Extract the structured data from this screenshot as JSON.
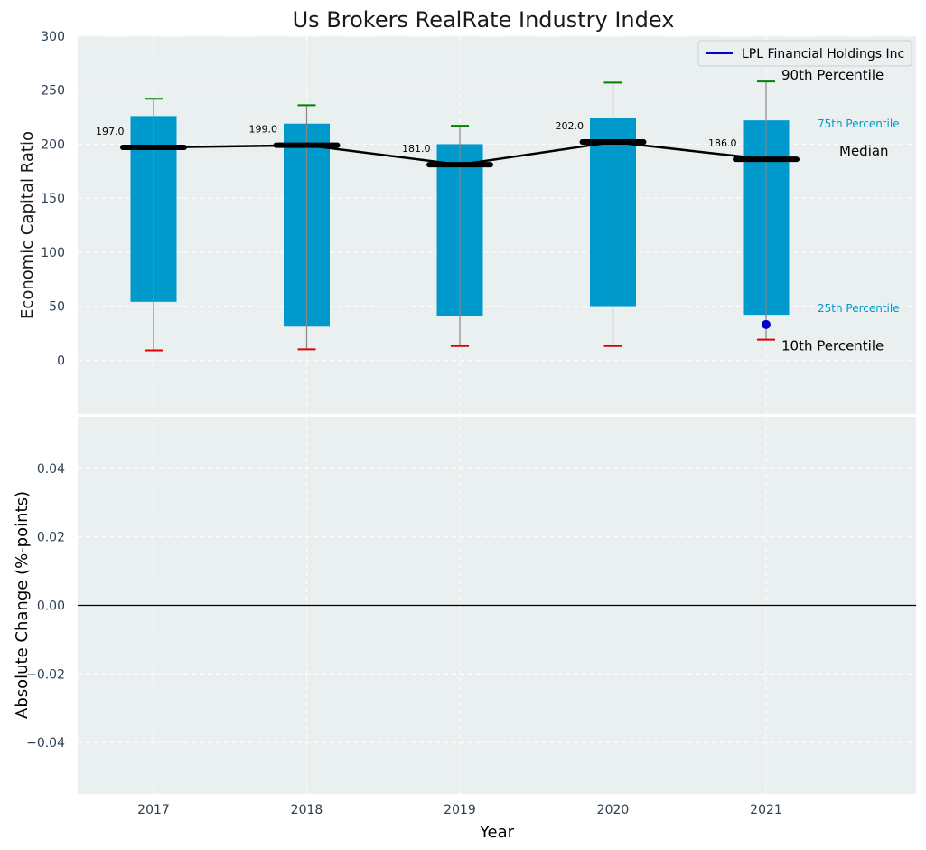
{
  "colors": {
    "panel_bg": "#eaeff0",
    "grid": "#ffffff",
    "bar": "#0099cc",
    "whisker_line": "#888888",
    "p90_cap": "#008000",
    "p10_cap": "#dd0000",
    "median": "#000000",
    "company": "#0000cc",
    "tick_text": "#2d3e50",
    "label_text": "#1a1a1a",
    "annot_blue": "#0099cc"
  },
  "chart_data": [
    {
      "type": "box",
      "title": "Us Brokers RealRate Industry Index",
      "xlabel": "",
      "ylabel": "Economic Capital Ratio",
      "ylim": [
        -50,
        300
      ],
      "yticks": [
        0,
        50,
        100,
        150,
        200,
        250,
        300
      ],
      "categories": [
        "2017",
        "2018",
        "2019",
        "2020",
        "2021"
      ],
      "grid": true,
      "legend_position": "top-right",
      "series": [
        {
          "name": "",
          "p10": [
            9,
            10,
            13,
            13,
            19
          ],
          "p25": [
            54,
            31,
            41,
            50,
            42
          ],
          "median": [
            197.0,
            199.0,
            181.0,
            202.0,
            186.0
          ],
          "p75": [
            226,
            219,
            200,
            224,
            222
          ],
          "p90": [
            242,
            236,
            217,
            257,
            258
          ]
        },
        {
          "name": "LPL Financial Holdings Inc",
          "values": [
            null,
            null,
            null,
            null,
            33
          ]
        }
      ],
      "median_labels": [
        "197.0",
        "199.0",
        "181.0",
        "202.0",
        "186.0"
      ],
      "annotations": {
        "p90": "90th Percentile",
        "p75": "75th Percentile",
        "median": "Median",
        "p25": "25th Percentile",
        "p10": "10th Percentile"
      }
    },
    {
      "type": "line",
      "xlabel": "Year",
      "ylabel": "Absolute Change (%-points)",
      "ylim": [
        -0.055,
        0.055
      ],
      "yticks": [
        -0.04,
        -0.02,
        0.0,
        0.02,
        0.04
      ],
      "ytick_labels": [
        "−0.04",
        "−0.02",
        "0.00",
        "0.02",
        "0.04"
      ],
      "categories": [
        "2017",
        "2018",
        "2019",
        "2020",
        "2021"
      ],
      "grid": true,
      "reference_line": 0,
      "series": []
    }
  ]
}
